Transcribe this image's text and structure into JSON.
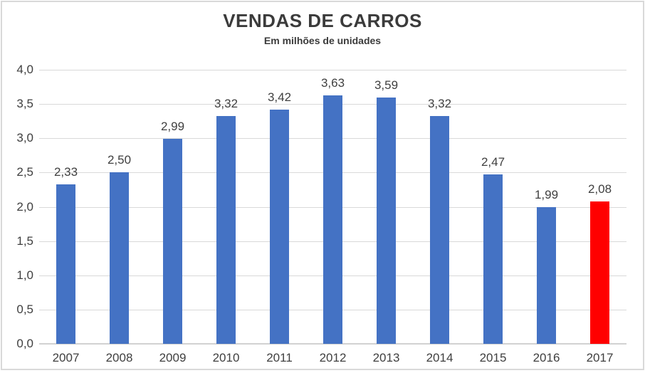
{
  "chart_data": {
    "type": "bar",
    "title": "VENDAS DE CARROS",
    "subtitle": "Em milhões de unidades",
    "categories": [
      "2007",
      "2008",
      "2009",
      "2010",
      "2011",
      "2012",
      "2013",
      "2014",
      "2015",
      "2016",
      "2017"
    ],
    "values": [
      2.33,
      2.5,
      2.99,
      3.32,
      3.42,
      3.63,
      3.59,
      3.32,
      2.47,
      1.99,
      2.08
    ],
    "value_labels": [
      "2,33",
      "2,50",
      "2,99",
      "3,32",
      "3,42",
      "3,63",
      "3,59",
      "3,32",
      "2,47",
      "1,99",
      "2,08"
    ],
    "xlabel": "",
    "ylabel": "",
    "ylim": [
      0,
      4
    ],
    "ytick_step": 0.5,
    "ytick_labels": [
      "0,0",
      "0,5",
      "1,0",
      "1,5",
      "2,0",
      "2,5",
      "3,0",
      "3,5",
      "4,0"
    ],
    "grid": true,
    "legend": false,
    "colors": {
      "bar_default": "#4472C4",
      "bar_highlight": "#FF0000",
      "highlight_index": 10,
      "gridline": "#D9D9D9",
      "axis_line": "#D2D2D2",
      "text": "#3F3F3F",
      "frame_border": "#D9D9D9"
    }
  }
}
